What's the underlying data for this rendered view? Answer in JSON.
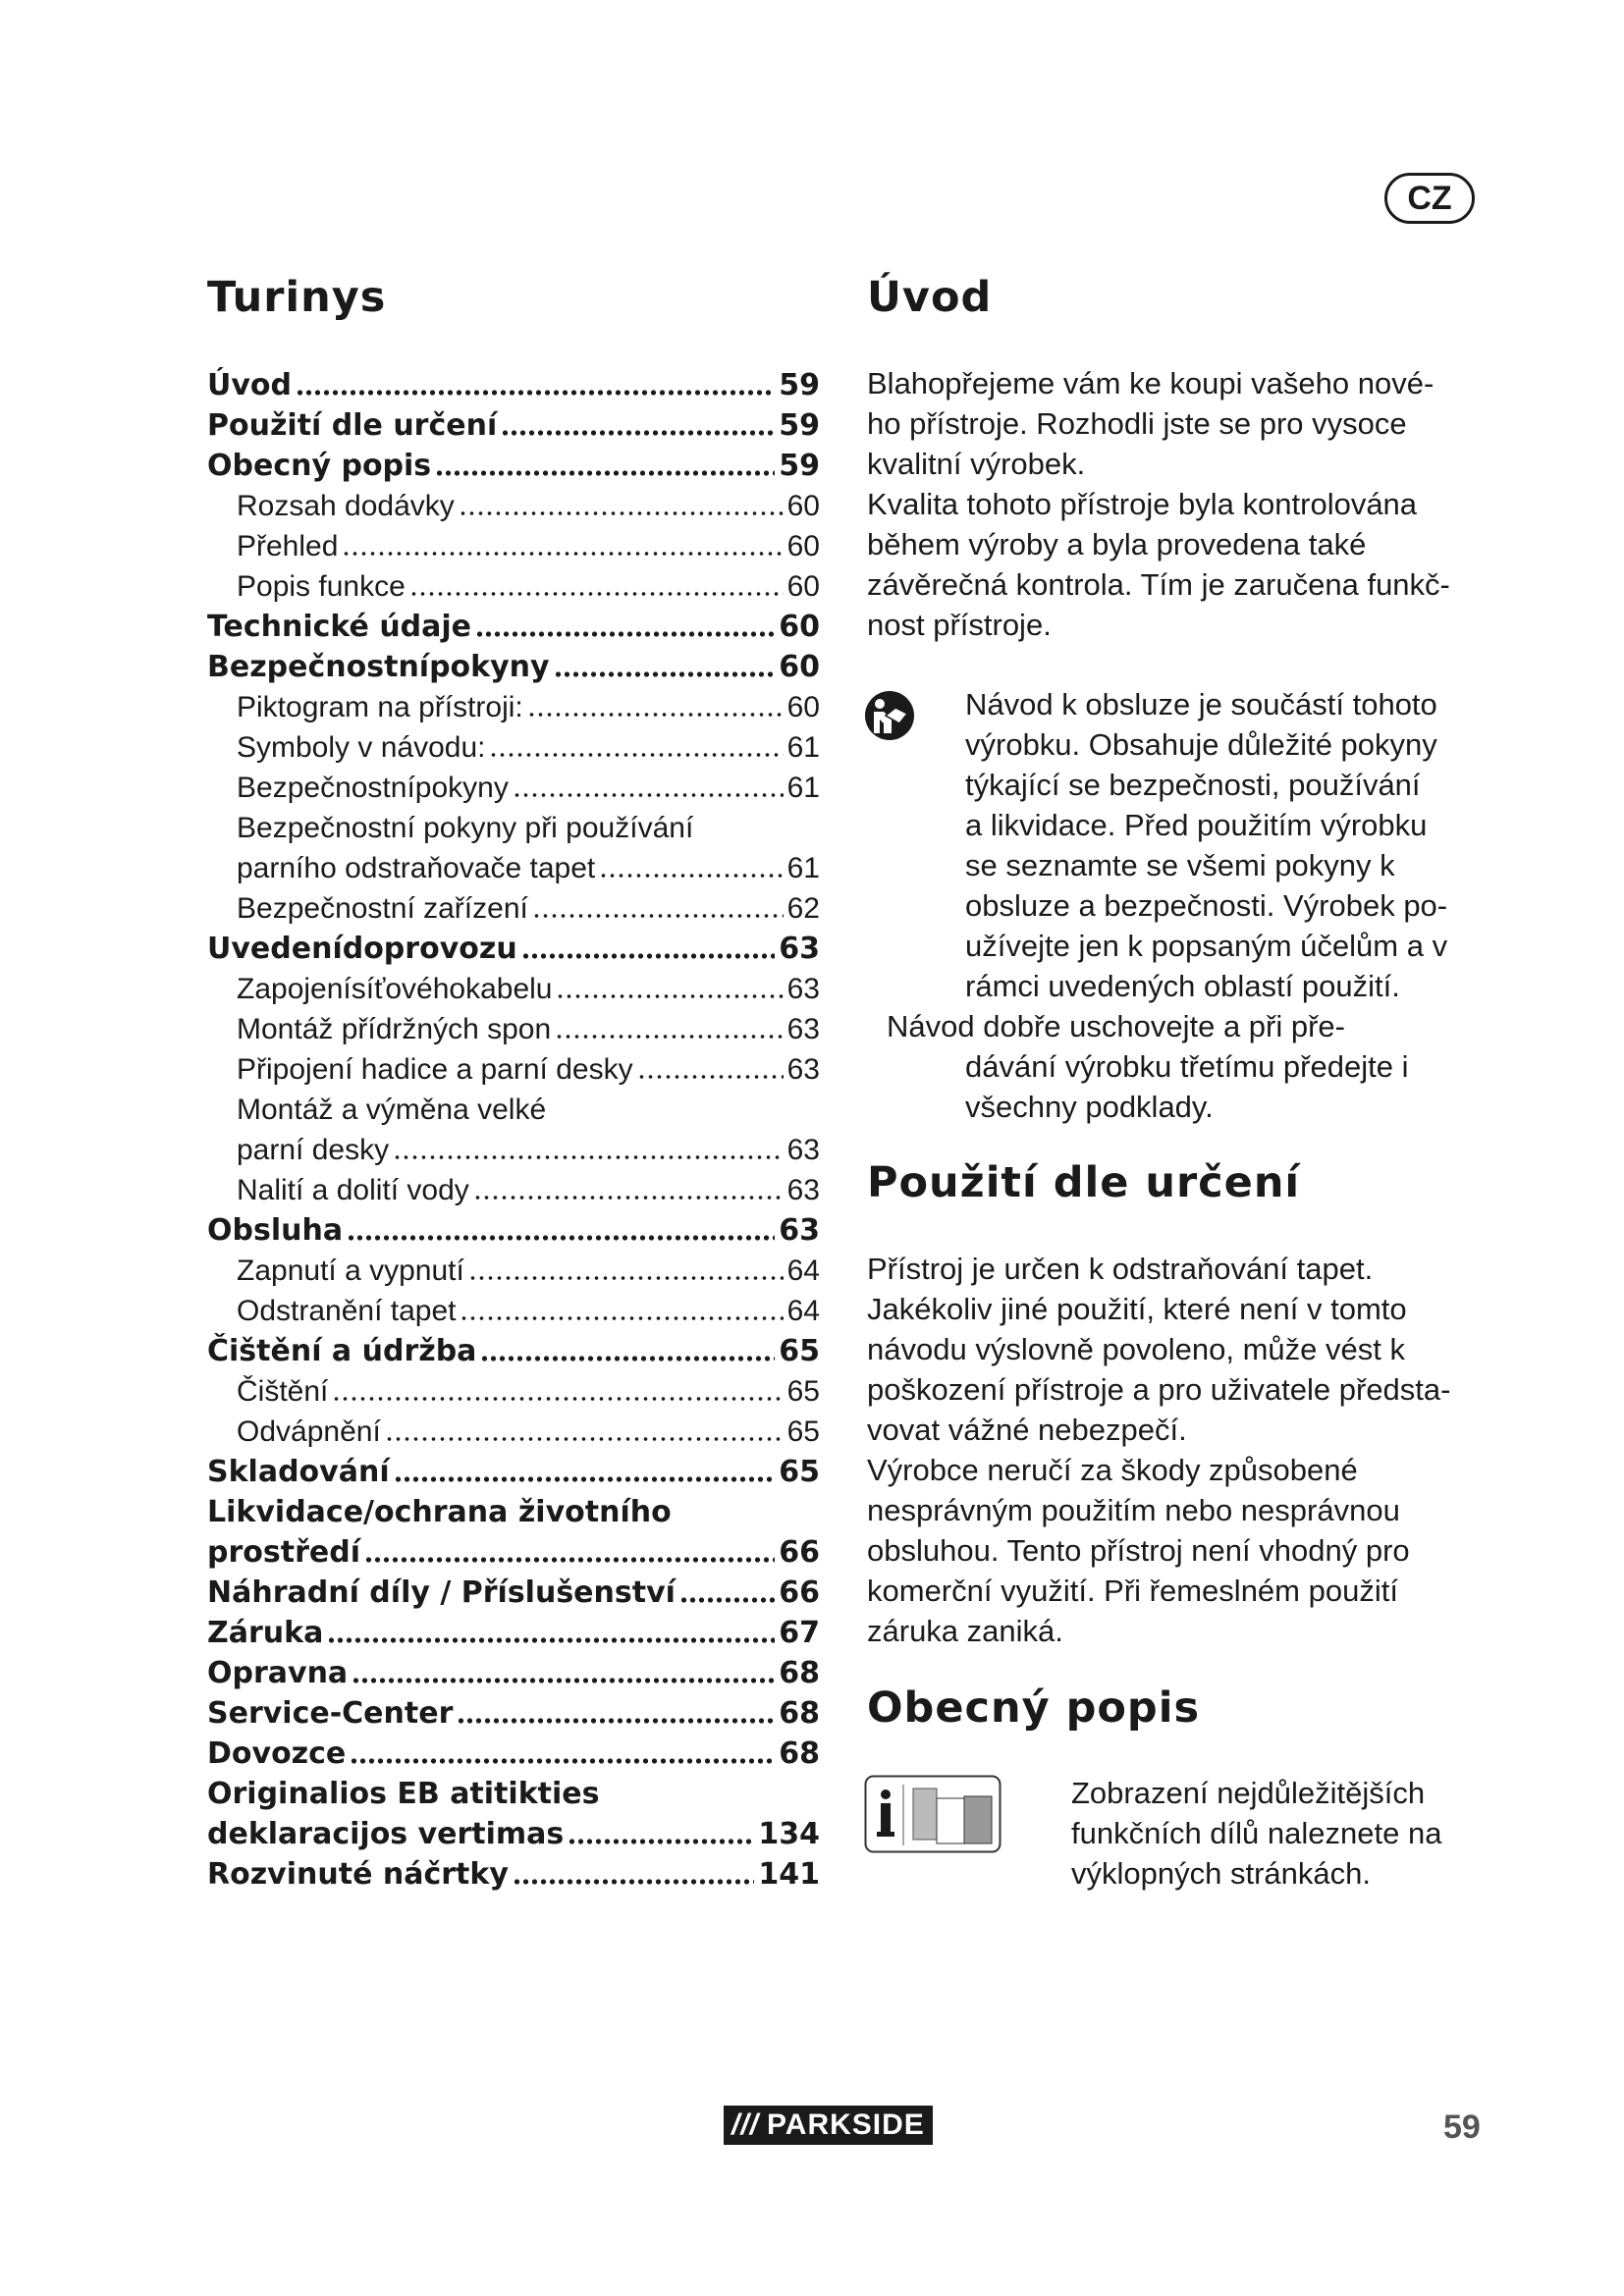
{
  "language_badge": "CZ",
  "toc": {
    "title": "Turinys",
    "entries": [
      {
        "title": "Úvod",
        "page": "59",
        "level": 1
      },
      {
        "title": "Použití dle určení",
        "page": "59",
        "level": 1
      },
      {
        "title": "Obecný popis",
        "page": "59",
        "level": 1
      },
      {
        "title": "Rozsah dodávky",
        "page": "60",
        "level": 2
      },
      {
        "title": "Přehled",
        "page": "60",
        "level": 2
      },
      {
        "title": "Popis funkce",
        "page": "60",
        "level": 2
      },
      {
        "title": "Technické údaje",
        "page": "60",
        "level": 1
      },
      {
        "title": "Bezpečnostnípokyny",
        "page": "60",
        "level": 1
      },
      {
        "title": "Piktogram na přístroji:",
        "page": "60",
        "level": 2
      },
      {
        "title": "Symboly v návodu:",
        "page": "61",
        "level": 2
      },
      {
        "title": "Bezpečnostnípokyny",
        "page": "61",
        "level": 2
      },
      {
        "pre": "Bezpečnostní pokyny při používání",
        "title": "parního odstraňovače tapet",
        "page": "61",
        "level": 2
      },
      {
        "title": "Bezpečnostní zařízení",
        "page": "62",
        "level": 2
      },
      {
        "title": "Uvedenídoprovozu",
        "page": "63",
        "level": 1
      },
      {
        "title": "Zapojenísíťovéhokabelu",
        "page": "63",
        "level": 2
      },
      {
        "title": "Montáž přídržných spon",
        "page": "63",
        "level": 2
      },
      {
        "title": "Připojení hadice a parní desky",
        "page": "63",
        "level": 2
      },
      {
        "pre": "Montáž a výměna velké",
        "title": "parní desky",
        "page": "63",
        "level": 2
      },
      {
        "title": "Nalití a dolití vody",
        "page": "63",
        "level": 2
      },
      {
        "title": "Obsluha",
        "page": "63",
        "level": 1
      },
      {
        "title": "Zapnutí a vypnutí",
        "page": "64",
        "level": 2
      },
      {
        "title": "Odstranění tapet",
        "page": "64",
        "level": 2
      },
      {
        "title": "Čištění a údržba",
        "page": "65",
        "level": 1
      },
      {
        "title": "Čištění",
        "page": "65",
        "level": 2
      },
      {
        "title": "Odvápnění",
        "page": "65",
        "level": 2
      },
      {
        "title": "Skladování",
        "page": "65",
        "level": 1
      },
      {
        "pre": "Likvidace/ochrana životního",
        "title": "prostředí",
        "page": "66",
        "level": 1
      },
      {
        "title": "Náhradní díly / Příslušenství",
        "page": "66",
        "level": 1
      },
      {
        "title": "Záruka",
        "page": "67",
        "level": 1
      },
      {
        "title": "Opravna",
        "page": "68",
        "level": 1
      },
      {
        "title": "Service-Center",
        "page": "68",
        "level": 1
      },
      {
        "title": "Dovozce",
        "page": "68",
        "level": 1
      },
      {
        "pre": "Originalios EB atitikties",
        "title": "deklaracijos vertimas",
        "page": "134",
        "level": 1
      },
      {
        "title": "Rozvinuté náčrtky",
        "page": "141",
        "level": 1
      }
    ]
  },
  "intro": {
    "title": "Úvod",
    "paragraph_lines": [
      "Blahopřejeme vám ke koupi vašeho nové-",
      "ho přístroje. Rozhodli jste se pro vysoce",
      "kvalitní výrobek.",
      "Kvalita tohoto přístroje byla kontrolována",
      "během výroby a byla provedena také",
      "závěrečná kontrola. Tím je zaručena funkč-",
      "nost přístroje."
    ],
    "notice_icon": "read-manual-icon",
    "notice_lines": [
      "Návod k obsluze je součástí tohoto",
      "výrobku. Obsahuje důležité pokyny",
      "týkající se bezpečnosti, používání",
      "a likvidace. Před použitím výrobku",
      "se seznamte se všemi pokyny k",
      "obsluze a bezpečnosti. Výrobek po-",
      "užívejte jen k popsaným účelům a v",
      "rámci uvedených oblastí použití."
    ],
    "keep_lines": [
      "Návod dobře uschovejte a při pře-",
      "dávání výrobku třetímu předejte i",
      "všechny podklady."
    ]
  },
  "intended_use": {
    "title": "Použití dle určení",
    "paragraph_lines": [
      "Přístroj je určen k odstraňování tapet.",
      "Jakékoliv jiné použití, které není v tomto",
      "návodu výslovně povoleno, může vést k",
      "poškození přístroje a pro uživatele předsta-",
      "vovat vážné nebezpečí.",
      "Výrobce neručí za škody způsobené",
      "nesprávným použitím nebo nesprávnou",
      "obsluhou. Tento přístroj není vhodný pro",
      "komerční využití. Při řemeslném použití",
      "záruka zaniká."
    ]
  },
  "general_description": {
    "title": "Obecný popis",
    "icon": "info-foldout-icon",
    "text_lines": [
      "Zobrazení nejdůležitějších",
      "funkčních dílů naleznete na",
      "výklopných stránkách."
    ]
  },
  "footer": {
    "brand": "PARKSIDE",
    "page_number": "59"
  }
}
